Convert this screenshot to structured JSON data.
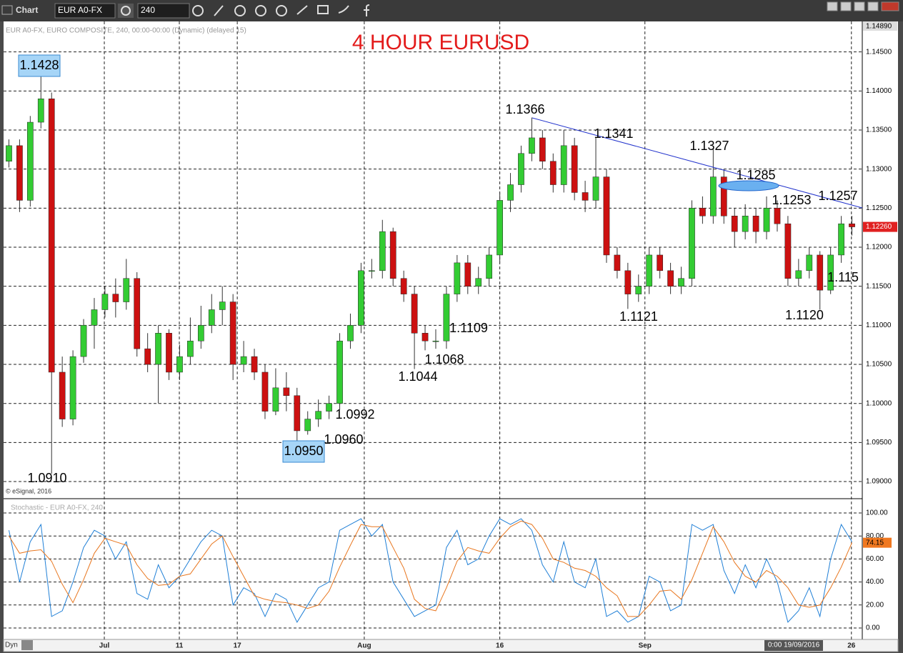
{
  "toolbar": {
    "app": "Chart",
    "symbol": "EUR A0-FX",
    "interval": "240"
  },
  "footer": {
    "mode": "Dyn",
    "cursor_time": "0:00 19/09/2016"
  },
  "chart_data": [
    {
      "type": "candlestick",
      "title": "4 HOUR EURUSD",
      "subtitle": "EUR A0-FX, EURO COMPOSITE, 240, 00:00-00:00 (Dynamic) (delayed 15)",
      "credit": "© eSignal, 2016",
      "up_color": "#33cc33",
      "down_color": "#cc1111",
      "grid": true,
      "xlim": [
        0,
        80
      ],
      "xticks": [
        {
          "value": 9.44,
          "label": "Jul"
        },
        {
          "value": 16.47,
          "label": "11"
        },
        {
          "value": 21.9,
          "label": "17"
        },
        {
          "value": 33.8,
          "label": "Aug"
        },
        {
          "value": 46.5,
          "label": "16"
        },
        {
          "value": 60.1,
          "label": "Sep"
        },
        {
          "value": 79.45,
          "label": "26"
        }
      ],
      "ylim": [
        1.0879,
        1.1489
      ],
      "yticks": [
        {
          "value": 1.09,
          "label": "1.09000"
        },
        {
          "value": 1.095,
          "label": "1.09500"
        },
        {
          "value": 1.1,
          "label": "1.10000"
        },
        {
          "value": 1.105,
          "label": "1.10500"
        },
        {
          "value": 1.11,
          "label": "1.11000"
        },
        {
          "value": 1.115,
          "label": "1.11500"
        },
        {
          "value": 1.12,
          "label": "1.12000"
        },
        {
          "value": 1.125,
          "label": "1.12500"
        },
        {
          "value": 1.13,
          "label": "1.13000"
        },
        {
          "value": 1.135,
          "label": "1.13500"
        },
        {
          "value": 1.14,
          "label": "1.14000"
        },
        {
          "value": 1.145,
          "label": "1.14500"
        }
      ],
      "top_label": {
        "value": 1.1489,
        "label": "1.14890"
      },
      "last_price": {
        "value": 1.1226,
        "label": "1.12260"
      },
      "open": [
        1.131,
        1.133,
        1.126,
        1.136,
        1.139,
        1.104,
        1.098,
        1.106,
        1.11,
        1.112,
        1.114,
        1.113,
        1.116,
        1.107,
        1.105,
        1.109,
        1.104,
        1.106,
        1.108,
        1.11,
        1.112,
        1.113,
        1.105,
        1.106,
        1.104,
        1.099,
        1.102,
        1.101,
        1.0965,
        1.098,
        1.099,
        1.1,
        1.108,
        1.11,
        1.117,
        1.117,
        1.122,
        1.116,
        1.114,
        1.109,
        1.108,
        1.108,
        1.114,
        1.118,
        1.115,
        1.116,
        1.119,
        1.126,
        1.128,
        1.132,
        1.134,
        1.131,
        1.128,
        1.133,
        1.127,
        1.126,
        1.129,
        1.119,
        1.117,
        1.114,
        1.115,
        1.119,
        1.117,
        1.115,
        1.116,
        1.125,
        1.124,
        1.129,
        1.124,
        1.122,
        1.124,
        1.122,
        1.125,
        1.123,
        1.116,
        1.117,
        1.119,
        1.1145,
        1.119,
        1.123
      ],
      "high": [
        1.1338,
        1.1338,
        1.1368,
        1.1428,
        1.1398,
        1.106,
        1.1068,
        1.1108,
        1.1135,
        1.115,
        1.116,
        1.1185,
        1.1168,
        1.109,
        1.11,
        1.1095,
        1.1075,
        1.111,
        1.1125,
        1.114,
        1.115,
        1.114,
        1.108,
        1.107,
        1.105,
        1.1045,
        1.104,
        1.102,
        1.099,
        1.1005,
        1.101,
        1.109,
        1.1115,
        1.118,
        1.1185,
        1.1235,
        1.1225,
        1.117,
        1.115,
        1.11,
        1.1095,
        1.115,
        1.119,
        1.119,
        1.1175,
        1.12,
        1.127,
        1.1295,
        1.133,
        1.1366,
        1.135,
        1.132,
        1.135,
        1.134,
        1.1285,
        1.1341,
        1.13,
        1.12,
        1.118,
        1.1165,
        1.12,
        1.12,
        1.118,
        1.1175,
        1.126,
        1.1265,
        1.1327,
        1.13,
        1.125,
        1.1255,
        1.125,
        1.1265,
        1.126,
        1.124,
        1.1185,
        1.12,
        1.1195,
        1.12,
        1.124,
        1.124
      ],
      "low": [
        1.1302,
        1.1245,
        1.1252,
        1.1352,
        1.091,
        1.097,
        1.0972,
        1.1052,
        1.107,
        1.111,
        1.111,
        1.112,
        1.106,
        1.104,
        1.1,
        1.103,
        1.103,
        1.105,
        1.107,
        1.109,
        1.11,
        1.103,
        1.104,
        1.103,
        1.098,
        1.0985,
        1.099,
        1.095,
        1.096,
        1.097,
        1.098,
        1.0992,
        1.107,
        1.109,
        1.116,
        1.116,
        1.115,
        1.113,
        1.1044,
        1.1068,
        1.107,
        1.107,
        1.113,
        1.114,
        1.114,
        1.115,
        1.118,
        1.1245,
        1.127,
        1.131,
        1.13,
        1.127,
        1.127,
        1.126,
        1.1245,
        1.125,
        1.118,
        1.116,
        1.1121,
        1.113,
        1.114,
        1.116,
        1.114,
        1.114,
        1.115,
        1.123,
        1.123,
        1.123,
        1.12,
        1.121,
        1.1205,
        1.121,
        1.122,
        1.115,
        1.115,
        1.116,
        1.112,
        1.114,
        1.118,
        1.1215
      ],
      "close": [
        1.133,
        1.126,
        1.136,
        1.139,
        1.104,
        1.098,
        1.106,
        1.11,
        1.112,
        1.114,
        1.113,
        1.116,
        1.107,
        1.105,
        1.109,
        1.104,
        1.106,
        1.108,
        1.11,
        1.112,
        1.113,
        1.105,
        1.106,
        1.104,
        1.099,
        1.102,
        1.101,
        1.0965,
        1.098,
        1.099,
        1.1,
        1.108,
        1.11,
        1.117,
        1.117,
        1.122,
        1.116,
        1.114,
        1.109,
        1.108,
        1.108,
        1.114,
        1.118,
        1.115,
        1.116,
        1.119,
        1.126,
        1.128,
        1.132,
        1.134,
        1.131,
        1.128,
        1.133,
        1.127,
        1.126,
        1.129,
        1.119,
        1.117,
        1.114,
        1.115,
        1.119,
        1.117,
        1.115,
        1.116,
        1.125,
        1.124,
        1.129,
        1.124,
        1.122,
        1.124,
        1.122,
        1.125,
        1.123,
        1.116,
        1.117,
        1.119,
        1.1145,
        1.119,
        1.123,
        1.1226
      ],
      "annotations": [
        "1.1428",
        "1.0910",
        "1.0950",
        "1.0960",
        "1.0992",
        "1.1044",
        "1.1068",
        "1.1109",
        "1.1366",
        "1.1341",
        "1.1327",
        "1.1285",
        "1.1253",
        "1.1257",
        "1.1121",
        "1.1120",
        "1.115"
      ]
    },
    {
      "type": "line",
      "title": "Stochastic - EUR A0-FX, 240",
      "grid": true,
      "xlim": [
        0,
        80
      ],
      "ylim": [
        -8.7,
        111.2
      ],
      "yticks": [
        {
          "value": 0,
          "label": "0.00"
        },
        {
          "value": 20,
          "label": "20.00"
        },
        {
          "value": 40,
          "label": "40.00"
        },
        {
          "value": 60,
          "label": "60.00"
        },
        {
          "value": 80,
          "label": "80.00"
        },
        {
          "value": 100,
          "label": "100.00"
        }
      ],
      "last_value": {
        "value": 74.15,
        "label": "74.15"
      },
      "series": [
        {
          "color": "#1f7fd6",
          "values": [
            85,
            40,
            75,
            90,
            10,
            15,
            40,
            70,
            85,
            80,
            60,
            75,
            30,
            25,
            55,
            35,
            45,
            60,
            75,
            85,
            80,
            20,
            35,
            30,
            10,
            30,
            25,
            5,
            20,
            35,
            40,
            85,
            90,
            95,
            80,
            90,
            40,
            25,
            10,
            15,
            20,
            70,
            85,
            55,
            60,
            80,
            95,
            90,
            95,
            85,
            55,
            40,
            75,
            40,
            35,
            60,
            10,
            15,
            5,
            10,
            45,
            40,
            15,
            20,
            90,
            85,
            90,
            50,
            30,
            55,
            35,
            60,
            40,
            5,
            15,
            35,
            10,
            60,
            90,
            75
          ]
        },
        {
          "color": "#e8761e",
          "values": [
            80,
            65,
            67,
            68,
            58,
            38,
            22,
            42,
            65,
            78,
            75,
            72,
            55,
            43,
            37,
            38,
            45,
            47,
            60,
            73,
            80,
            62,
            45,
            28,
            25,
            23,
            22,
            20,
            17,
            20,
            32,
            53,
            72,
            90,
            88,
            88,
            70,
            52,
            25,
            17,
            15,
            35,
            58,
            70,
            67,
            65,
            78,
            88,
            93,
            90,
            78,
            60,
            57,
            52,
            50,
            45,
            35,
            28,
            10,
            10,
            20,
            32,
            33,
            25,
            42,
            65,
            88,
            75,
            57,
            45,
            40,
            50,
            45,
            35,
            20,
            18,
            20,
            35,
            53,
            74.15
          ]
        }
      ]
    }
  ]
}
